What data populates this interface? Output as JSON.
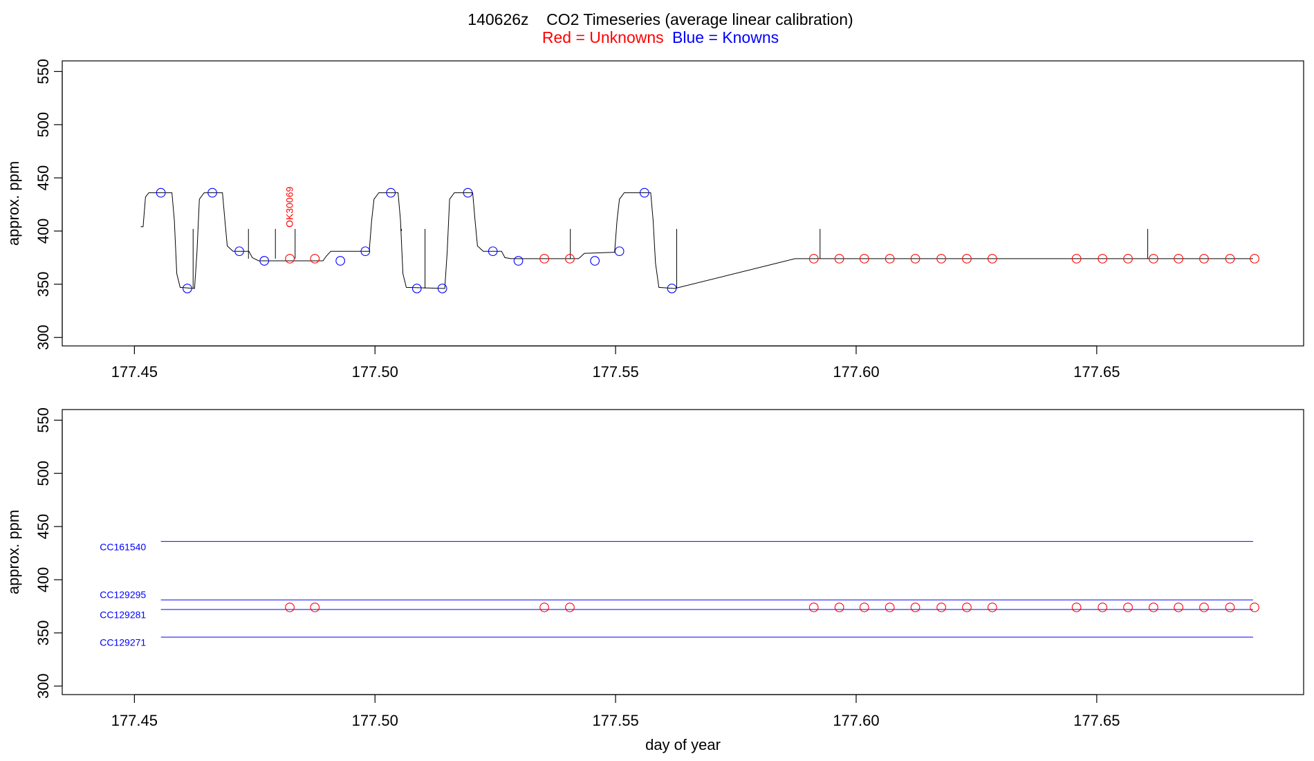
{
  "title": {
    "main": "140626z    CO2 Timeseries (average linear calibration)",
    "legend_red": "Red = Unknowns",
    "legend_blue": "Blue = Knowns"
  },
  "colors": {
    "unknown": "#ff0000",
    "known": "#0000ff",
    "trace": "#000000"
  },
  "chart_data": [
    {
      "type": "line",
      "panel": "top",
      "title": "",
      "xlabel": "",
      "ylabel": "approx. ppm",
      "xlim": [
        177.435,
        177.693
      ],
      "ylim": [
        292,
        560
      ],
      "xticks": [
        177.45,
        177.5,
        177.55,
        177.6,
        177.65
      ],
      "xtick_labels": [
        "177.45",
        "177.50",
        "177.55",
        "177.60",
        "177.65"
      ],
      "yticks": [
        300,
        350,
        400,
        450,
        500,
        550
      ],
      "ytick_labels": [
        "300",
        "350",
        "400",
        "450",
        "500",
        "550"
      ],
      "trace": [
        [
          177.4513,
          404
        ],
        [
          177.4518,
          404
        ],
        [
          177.4523,
          432
        ],
        [
          177.453,
          436
        ],
        [
          177.4578,
          436
        ],
        [
          177.4583,
          410
        ],
        [
          177.4588,
          360
        ],
        [
          177.4595,
          347
        ],
        [
          177.4625,
          346
        ],
        [
          177.463,
          380
        ],
        [
          177.4635,
          430
        ],
        [
          177.4645,
          436
        ],
        [
          177.4683,
          436
        ],
        [
          177.4688,
          410
        ],
        [
          177.4693,
          386
        ],
        [
          177.4705,
          381
        ],
        [
          177.4738,
          381
        ],
        [
          177.4745,
          375
        ],
        [
          177.4758,
          372
        ],
        [
          177.4892,
          372
        ],
        [
          177.4898,
          376
        ],
        [
          177.4908,
          381
        ],
        [
          177.4988,
          381
        ],
        [
          177.4993,
          410
        ],
        [
          177.4998,
          430
        ],
        [
          177.5008,
          436
        ],
        [
          177.5048,
          436
        ],
        [
          177.5053,
          410
        ],
        [
          177.5058,
          360
        ],
        [
          177.5065,
          347
        ],
        [
          177.5145,
          346
        ],
        [
          177.515,
          380
        ],
        [
          177.5155,
          430
        ],
        [
          177.5165,
          436
        ],
        [
          177.5203,
          436
        ],
        [
          177.5208,
          410
        ],
        [
          177.5213,
          386
        ],
        [
          177.5225,
          381
        ],
        [
          177.5263,
          381
        ],
        [
          177.527,
          375
        ],
        [
          177.5283,
          374
        ],
        [
          177.5423,
          374
        ],
        [
          177.5428,
          376
        ],
        [
          177.5435,
          379
        ],
        [
          177.5493,
          380
        ],
        [
          177.5498,
          380
        ],
        [
          177.5503,
          410
        ],
        [
          177.5508,
          430
        ],
        [
          177.5518,
          436
        ],
        [
          177.5573,
          436
        ],
        [
          177.5578,
          410
        ],
        [
          177.5583,
          370
        ],
        [
          177.559,
          347
        ],
        [
          177.5623,
          346
        ],
        [
          177.5873,
          374
        ],
        [
          177.6825,
          374
        ]
      ],
      "spikes": [
        [
          177.4622,
          346,
          402
        ],
        [
          177.4737,
          374,
          402
        ],
        [
          177.4793,
          374,
          402
        ],
        [
          177.4834,
          374,
          402
        ],
        [
          177.5055,
          400,
          402
        ],
        [
          177.5104,
          346,
          402
        ],
        [
          177.5406,
          374,
          402
        ],
        [
          177.5627,
          346,
          402
        ],
        [
          177.5925,
          374,
          402
        ],
        [
          177.6606,
          374,
          402
        ]
      ],
      "knowns": [
        [
          177.4555,
          436
        ],
        [
          177.461,
          346
        ],
        [
          177.4662,
          436
        ],
        [
          177.4718,
          381
        ],
        [
          177.477,
          372
        ],
        [
          177.4928,
          372
        ],
        [
          177.498,
          381
        ],
        [
          177.5033,
          436
        ],
        [
          177.5087,
          346
        ],
        [
          177.514,
          346
        ],
        [
          177.5193,
          436
        ],
        [
          177.5245,
          381
        ],
        [
          177.5298,
          372
        ],
        [
          177.5457,
          372
        ],
        [
          177.5508,
          381
        ],
        [
          177.556,
          436
        ],
        [
          177.5617,
          346
        ]
      ],
      "unknowns": [
        [
          177.4823,
          374
        ],
        [
          177.4875,
          374
        ],
        [
          177.5352,
          374
        ],
        [
          177.5405,
          374
        ],
        [
          177.5912,
          374
        ],
        [
          177.5965,
          374
        ],
        [
          177.6017,
          374
        ],
        [
          177.607,
          374
        ],
        [
          177.6123,
          374
        ],
        [
          177.6177,
          374
        ],
        [
          177.623,
          374
        ],
        [
          177.6283,
          374
        ],
        [
          177.6458,
          374
        ],
        [
          177.6512,
          374
        ],
        [
          177.6565,
          374
        ],
        [
          177.6618,
          374
        ],
        [
          177.667,
          374
        ],
        [
          177.6723,
          374
        ],
        [
          177.6777,
          374
        ],
        [
          177.6828,
          374
        ]
      ],
      "annotations": [
        {
          "text": "OK30069",
          "x": 177.4834,
          "y": 402,
          "rotation": -90,
          "color": "#ff0000"
        }
      ]
    },
    {
      "type": "scatter",
      "panel": "bottom",
      "title": "",
      "xlabel": "day of year",
      "ylabel": "approx. ppm",
      "xlim": [
        177.435,
        177.693
      ],
      "ylim": [
        292,
        560
      ],
      "xticks": [
        177.45,
        177.5,
        177.55,
        177.6,
        177.65
      ],
      "xtick_labels": [
        "177.45",
        "177.50",
        "177.55",
        "177.60",
        "177.65"
      ],
      "yticks": [
        300,
        350,
        400,
        450,
        500,
        550
      ],
      "ytick_labels": [
        "300",
        "350",
        "400",
        "450",
        "500",
        "550"
      ],
      "standards": [
        {
          "name": "CC161540",
          "value": 436,
          "color": "#0000ff",
          "x_start": 177.4555,
          "x_end": 177.6825,
          "label_y": 431
        },
        {
          "name": "CC129295",
          "value": 381,
          "color": "#0000ff",
          "x_start": 177.4555,
          "x_end": 177.6825,
          "label_y": 386
        },
        {
          "name": "CC129281",
          "value": 372,
          "color": "#0000ff",
          "x_start": 177.4555,
          "x_end": 177.6825,
          "label_y": 367
        },
        {
          "name": "CC129271",
          "value": 346,
          "color": "#0000ff",
          "x_start": 177.4555,
          "x_end": 177.6825,
          "label_y": 341
        }
      ],
      "unknowns": [
        [
          177.4823,
          374
        ],
        [
          177.4875,
          374
        ],
        [
          177.5352,
          374
        ],
        [
          177.5405,
          374
        ],
        [
          177.5912,
          374
        ],
        [
          177.5965,
          374
        ],
        [
          177.6017,
          374
        ],
        [
          177.607,
          374
        ],
        [
          177.6123,
          374
        ],
        [
          177.6177,
          374
        ],
        [
          177.623,
          374
        ],
        [
          177.6283,
          374
        ],
        [
          177.6458,
          374
        ],
        [
          177.6512,
          374
        ],
        [
          177.6565,
          374
        ],
        [
          177.6618,
          374
        ],
        [
          177.667,
          374
        ],
        [
          177.6723,
          374
        ],
        [
          177.6777,
          374
        ],
        [
          177.6828,
          374
        ]
      ]
    }
  ]
}
